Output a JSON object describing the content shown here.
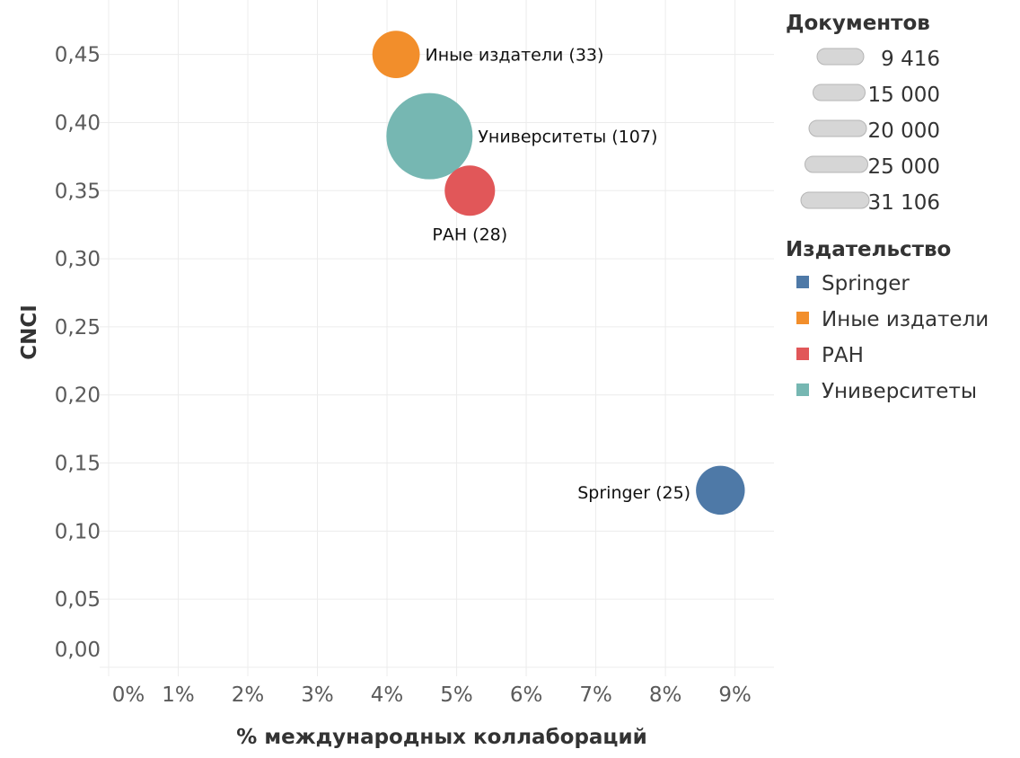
{
  "chart_data": {
    "type": "scatter",
    "subtype": "bubble",
    "xlabel": "% международных коллабораций",
    "ylabel": "CNCI",
    "xlim": [
      0,
      9.56
    ],
    "ylim": [
      0,
      0.49
    ],
    "x_ticks": [
      "0%",
      "1%",
      "2%",
      "3%",
      "4%",
      "5%",
      "6%",
      "7%",
      "8%",
      "9%"
    ],
    "x_tick_values": [
      0,
      1,
      2,
      3,
      4,
      5,
      6,
      7,
      8,
      9
    ],
    "y_ticks": [
      "0,00",
      "0,05",
      "0,10",
      "0,15",
      "0,20",
      "0,25",
      "0,30",
      "0,35",
      "0,40",
      "0,45"
    ],
    "y_tick_values": [
      0,
      0.05,
      0.1,
      0.15,
      0.2,
      0.25,
      0.3,
      0.35,
      0.4,
      0.45
    ],
    "grid": true,
    "points": [
      {
        "name": "Иные издатели",
        "label": "Иные издатели (33)",
        "x": 4.13,
        "y": 0.45,
        "size": 9416,
        "color": "#f28e2b",
        "label_pos": "right"
      },
      {
        "name": "Университеты",
        "label": "Университеты (107)",
        "x": 4.61,
        "y": 0.39,
        "size": 31106,
        "color": "#76b7b2",
        "label_pos": "right"
      },
      {
        "name": "РАН",
        "label": "РАН (28)",
        "x": 5.19,
        "y": 0.35,
        "size": 10600,
        "color": "#e15759",
        "label_pos": "below"
      },
      {
        "name": "Springer",
        "label": "Springer (25)",
        "x": 8.79,
        "y": 0.13,
        "size": 10000,
        "color": "#4e79a7",
        "label_pos": "left"
      }
    ],
    "size_legend": {
      "title": "Документов",
      "values": [
        "9 416",
        "15 000",
        "20 000",
        "25 000",
        "31 106"
      ]
    },
    "color_legend": {
      "title": "Издательство",
      "placement": "right",
      "items": [
        {
          "label": "Springer",
          "color": "#4e79a7"
        },
        {
          "label": "Иные издатели",
          "color": "#f28e2b"
        },
        {
          "label": "РАН",
          "color": "#e15759"
        },
        {
          "label": "Университеты",
          "color": "#76b7b2"
        }
      ]
    }
  }
}
